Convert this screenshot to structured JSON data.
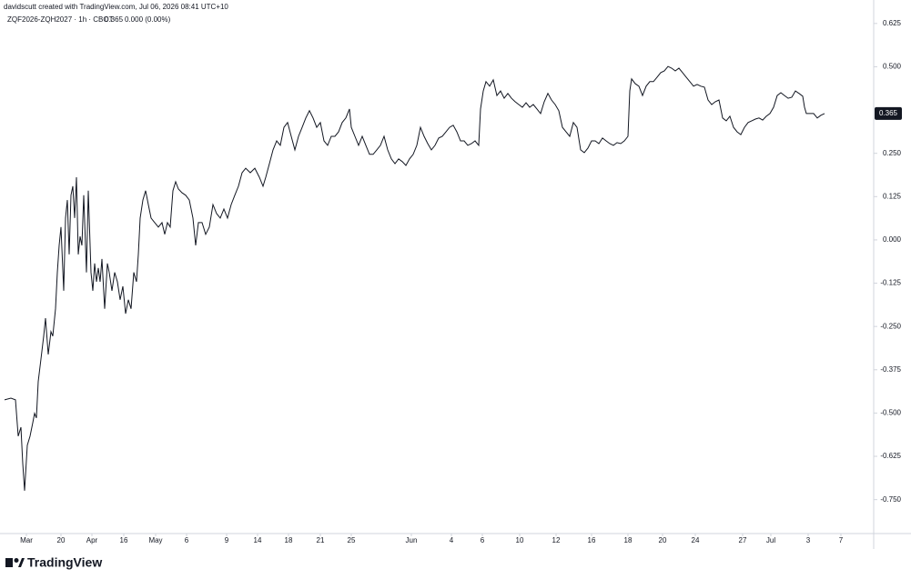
{
  "chart_data": {
    "type": "line",
    "credit": "davidscutt created with TradingView.com, Jul 06, 2026 08:41 UTC+10",
    "symbol": "ZQF2026-ZQH2027 · 1h · CBOT",
    "last": 0.365,
    "change": "0.000 (0.00%)",
    "xlim": [
      0,
      960
    ],
    "ylim": [
      -0.848,
      0.656
    ],
    "xticks": [
      {
        "value": 29,
        "label": "Mar"
      },
      {
        "value": 67,
        "label": "20"
      },
      {
        "value": 101,
        "label": "Apr"
      },
      {
        "value": 136,
        "label": "16"
      },
      {
        "value": 171,
        "label": "May"
      },
      {
        "value": 205,
        "label": "6"
      },
      {
        "value": 249,
        "label": "9"
      },
      {
        "value": 283,
        "label": "14"
      },
      {
        "value": 317,
        "label": "18"
      },
      {
        "value": 352,
        "label": "21"
      },
      {
        "value": 386,
        "label": "25"
      },
      {
        "value": 452,
        "label": "Jun"
      },
      {
        "value": 496,
        "label": "4"
      },
      {
        "value": 530,
        "label": "6"
      },
      {
        "value": 571,
        "label": "10"
      },
      {
        "value": 611,
        "label": "12"
      },
      {
        "value": 650,
        "label": "16"
      },
      {
        "value": 690,
        "label": "18"
      },
      {
        "value": 728,
        "label": "20"
      },
      {
        "value": 764,
        "label": "24"
      },
      {
        "value": 816,
        "label": "27"
      },
      {
        "value": 847,
        "label": "Jul"
      },
      {
        "value": 888,
        "label": "3"
      },
      {
        "value": 924,
        "label": "7"
      }
    ],
    "yticks": [
      {
        "value": 0.625,
        "label": "0.625"
      },
      {
        "value": 0.5,
        "label": "0.500"
      },
      {
        "value": 0.25,
        "label": "0.250"
      },
      {
        "value": 0.125,
        "label": "0.125"
      },
      {
        "value": 0,
        "label": "0.000"
      },
      {
        "value": -0.125,
        "label": "-0.125"
      },
      {
        "value": -0.25,
        "label": "-0.250"
      },
      {
        "value": -0.375,
        "label": "-0.375"
      },
      {
        "value": -0.5,
        "label": "-0.500"
      },
      {
        "value": -0.625,
        "label": "-0.625"
      },
      {
        "value": -0.75,
        "label": "-0.750"
      }
    ],
    "series": [
      {
        "color": "#131722",
        "x": [
          5,
          12,
          17,
          20,
          23,
          25,
          27,
          30,
          33,
          36,
          38,
          40,
          42,
          45,
          48,
          50,
          53,
          56,
          58,
          61,
          63,
          65,
          67,
          70,
          72,
          74,
          76,
          78,
          80,
          82,
          84,
          86,
          88,
          90,
          92,
          95,
          97,
          100,
          102,
          104,
          106,
          108,
          110,
          112,
          115,
          118,
          120,
          123,
          126,
          129,
          132,
          135,
          138,
          141,
          144,
          147,
          150,
          152,
          154,
          157,
          160,
          163,
          166,
          170,
          174,
          178,
          181,
          184,
          187,
          190,
          193,
          196,
          200,
          204,
          208,
          212,
          215,
          218,
          222,
          226,
          230,
          234,
          238,
          242,
          246,
          250,
          254,
          258,
          262,
          266,
          270,
          275,
          280,
          285,
          289,
          292,
          296,
          300,
          304,
          308,
          312,
          316,
          320,
          324,
          328,
          332,
          336,
          340,
          344,
          348,
          352,
          356,
          360,
          364,
          368,
          372,
          376,
          380,
          384,
          386,
          390,
          394,
          398,
          402,
          406,
          410,
          414,
          418,
          422,
          426,
          430,
          434,
          438,
          442,
          446,
          450,
          454,
          458,
          462,
          466,
          470,
          474,
          478,
          482,
          486,
          490,
          494,
          498,
          502,
          506,
          510,
          514,
          518,
          522,
          526,
          528,
          531,
          534,
          538,
          542,
          546,
          550,
          554,
          558,
          562,
          566,
          570,
          574,
          578,
          582,
          586,
          590,
          594,
          598,
          602,
          606,
          610,
          614,
          618,
          622,
          626,
          630,
          634,
          638,
          642,
          646,
          650,
          654,
          658,
          662,
          666,
          670,
          674,
          678,
          682,
          686,
          690,
          692,
          694,
          698,
          702,
          706,
          710,
          714,
          718,
          722,
          726,
          730,
          734,
          738,
          742,
          746,
          750,
          754,
          758,
          762,
          766,
          770,
          774,
          778,
          782,
          786,
          790,
          794,
          798,
          802,
          806,
          810,
          814,
          818,
          822,
          826,
          830,
          834,
          838,
          842,
          846,
          850,
          854,
          858,
          862,
          866,
          870,
          874,
          878,
          882,
          884,
          886,
          890,
          894,
          898,
          902,
          906
        ],
        "values": [
          -0.462,
          -0.457,
          -0.462,
          -0.567,
          -0.541,
          -0.646,
          -0.724,
          -0.593,
          -0.567,
          -0.528,
          -0.501,
          -0.514,
          -0.409,
          -0.344,
          -0.278,
          -0.226,
          -0.331,
          -0.265,
          -0.278,
          -0.199,
          -0.094,
          -0.016,
          0.037,
          -0.147,
          0.063,
          0.115,
          -0.042,
          0.129,
          0.155,
          0.063,
          0.181,
          -0.042,
          0.01,
          -0.016,
          0.129,
          -0.094,
          0.142,
          -0.094,
          -0.147,
          -0.068,
          -0.121,
          -0.081,
          -0.121,
          -0.055,
          -0.199,
          -0.068,
          -0.094,
          -0.147,
          -0.094,
          -0.121,
          -0.173,
          -0.134,
          -0.213,
          -0.173,
          -0.199,
          -0.094,
          -0.121,
          -0.042,
          0.063,
          0.115,
          0.142,
          0.102,
          0.063,
          0.05,
          0.037,
          0.05,
          0.016,
          0.05,
          0.037,
          0.142,
          0.168,
          0.147,
          0.136,
          0.129,
          0.115,
          0.063,
          -0.016,
          0.05,
          0.05,
          0.016,
          0.037,
          0.102,
          0.076,
          0.063,
          0.089,
          0.063,
          0.102,
          0.129,
          0.155,
          0.194,
          0.207,
          0.194,
          0.207,
          0.181,
          0.155,
          0.181,
          0.22,
          0.26,
          0.286,
          0.273,
          0.325,
          0.339,
          0.299,
          0.26,
          0.299,
          0.325,
          0.352,
          0.373,
          0.352,
          0.325,
          0.339,
          0.286,
          0.273,
          0.299,
          0.299,
          0.312,
          0.339,
          0.352,
          0.378,
          0.325,
          0.299,
          0.273,
          0.299,
          0.273,
          0.247,
          0.247,
          0.26,
          0.273,
          0.299,
          0.26,
          0.234,
          0.22,
          0.234,
          0.226,
          0.215,
          0.234,
          0.247,
          0.273,
          0.325,
          0.299,
          0.278,
          0.26,
          0.273,
          0.294,
          0.299,
          0.312,
          0.325,
          0.331,
          0.312,
          0.286,
          0.286,
          0.273,
          0.278,
          0.286,
          0.273,
          0.378,
          0.43,
          0.457,
          0.444,
          0.462,
          0.417,
          0.43,
          0.409,
          0.423,
          0.409,
          0.399,
          0.391,
          0.383,
          0.396,
          0.383,
          0.391,
          0.378,
          0.365,
          0.399,
          0.423,
          0.404,
          0.391,
          0.373,
          0.325,
          0.312,
          0.299,
          0.339,
          0.325,
          0.26,
          0.252,
          0.265,
          0.286,
          0.286,
          0.278,
          0.294,
          0.286,
          0.278,
          0.273,
          0.281,
          0.278,
          0.286,
          0.299,
          0.43,
          0.465,
          0.451,
          0.444,
          0.417,
          0.444,
          0.457,
          0.457,
          0.47,
          0.483,
          0.488,
          0.501,
          0.496,
          0.488,
          0.496,
          0.483,
          0.47,
          0.457,
          0.444,
          0.449,
          0.444,
          0.441,
          0.404,
          0.391,
          0.399,
          0.404,
          0.352,
          0.344,
          0.357,
          0.325,
          0.312,
          0.304,
          0.325,
          0.339,
          0.344,
          0.349,
          0.352,
          0.346,
          0.357,
          0.365,
          0.383,
          0.417,
          0.425,
          0.417,
          0.409,
          0.412,
          0.43,
          0.423,
          0.415,
          0.383,
          0.365,
          0.365,
          0.365,
          0.352,
          0.36,
          0.365
        ]
      }
    ]
  },
  "brand": "TradingView"
}
